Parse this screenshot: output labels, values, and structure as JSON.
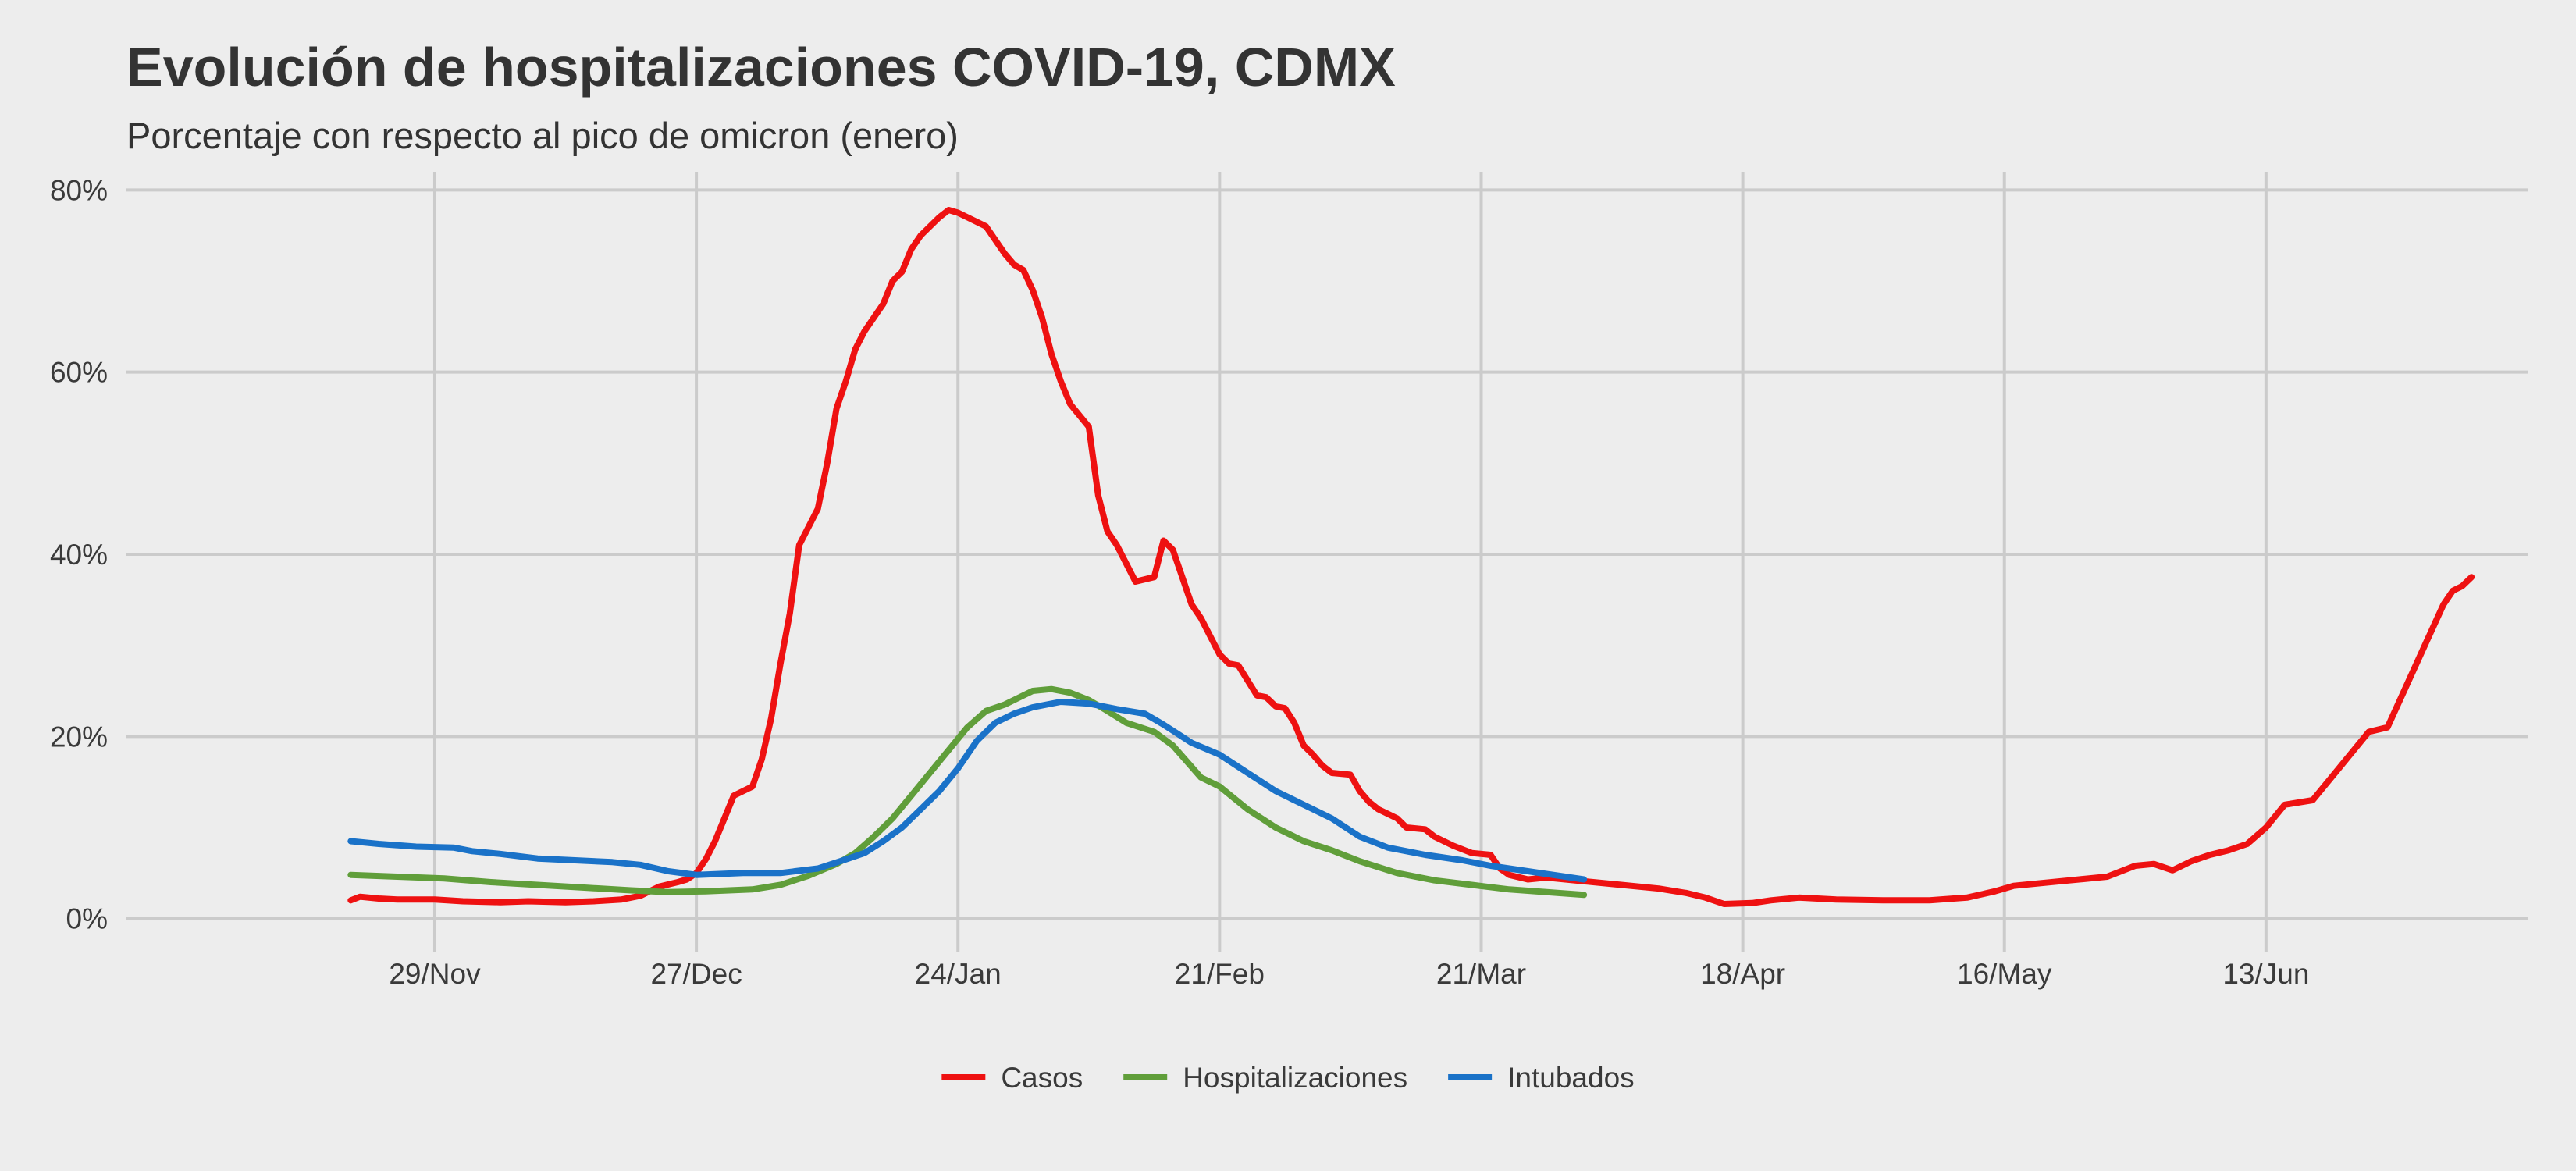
{
  "chart_data": {
    "type": "line",
    "title": "Evolución de hospitalizaciones COVID-19, CDMX",
    "subtitle": "Porcentaje con respecto al pico de omicron (enero)",
    "xlabel": "",
    "ylabel": "",
    "x_ticks": [
      {
        "date": "2021-11-29",
        "label": "29/Nov"
      },
      {
        "date": "2021-12-27",
        "label": "27/Dec"
      },
      {
        "date": "2022-01-24",
        "label": "24/Jan"
      },
      {
        "date": "2022-02-21",
        "label": "21/Feb"
      },
      {
        "date": "2022-03-21",
        "label": "21/Mar"
      },
      {
        "date": "2022-04-18",
        "label": "18/Apr"
      },
      {
        "date": "2022-05-16",
        "label": "16/May"
      },
      {
        "date": "2022-06-13",
        "label": "13/Jun"
      }
    ],
    "y_ticks": [
      {
        "value": 0,
        "label": "0%"
      },
      {
        "value": 20,
        "label": "20%"
      },
      {
        "value": 40,
        "label": "40%"
      },
      {
        "value": 60,
        "label": "60%"
      },
      {
        "value": 80,
        "label": "80%"
      }
    ],
    "xlim": [
      "2021-10-27",
      "2022-07-11"
    ],
    "ylim": [
      -2,
      82
    ],
    "grid": true,
    "legend_position": "bottom",
    "series": [
      {
        "name": "Casos",
        "color": "#ee1111",
        "points": [
          [
            "2021-11-20",
            2.0
          ],
          [
            "2021-11-21",
            2.4
          ],
          [
            "2021-11-23",
            2.2
          ],
          [
            "2021-11-25",
            2.1
          ],
          [
            "2021-11-29",
            2.1
          ],
          [
            "2021-12-02",
            1.9
          ],
          [
            "2021-12-06",
            1.8
          ],
          [
            "2021-12-09",
            1.9
          ],
          [
            "2021-12-13",
            1.8
          ],
          [
            "2021-12-16",
            1.9
          ],
          [
            "2021-12-19",
            2.1
          ],
          [
            "2021-12-21",
            2.5
          ],
          [
            "2021-12-23",
            3.5
          ],
          [
            "2021-12-25",
            4.0
          ],
          [
            "2021-12-26",
            4.3
          ],
          [
            "2021-12-27",
            5.0
          ],
          [
            "2021-12-28",
            6.5
          ],
          [
            "2021-12-29",
            8.5
          ],
          [
            "2021-12-30",
            11.0
          ],
          [
            "2021-12-31",
            13.5
          ],
          [
            "2022-01-02",
            14.5
          ],
          [
            "2022-01-03",
            17.5
          ],
          [
            "2022-01-04",
            22.0
          ],
          [
            "2022-01-05",
            28.0
          ],
          [
            "2022-01-06",
            33.5
          ],
          [
            "2022-01-07",
            41.0
          ],
          [
            "2022-01-09",
            45.0
          ],
          [
            "2022-01-10",
            50.0
          ],
          [
            "2022-01-11",
            56.0
          ],
          [
            "2022-01-12",
            59.0
          ],
          [
            "2022-01-13",
            62.5
          ],
          [
            "2022-01-14",
            64.5
          ],
          [
            "2022-01-16",
            67.5
          ],
          [
            "2022-01-17",
            70.0
          ],
          [
            "2022-01-18",
            71.0
          ],
          [
            "2022-01-19",
            73.5
          ],
          [
            "2022-01-20",
            75.0
          ],
          [
            "2022-01-22",
            77.0
          ],
          [
            "2022-01-23",
            77.8
          ],
          [
            "2022-01-24",
            77.5
          ],
          [
            "2022-01-25",
            77.0
          ],
          [
            "2022-01-27",
            76.0
          ],
          [
            "2022-01-29",
            73.0
          ],
          [
            "2022-01-30",
            71.8
          ],
          [
            "2022-01-31",
            71.2
          ],
          [
            "2022-02-01",
            69.0
          ],
          [
            "2022-02-02",
            66.0
          ],
          [
            "2022-02-03",
            62.0
          ],
          [
            "2022-02-04",
            59.0
          ],
          [
            "2022-02-05",
            56.5
          ],
          [
            "2022-02-07",
            54.0
          ],
          [
            "2022-02-08",
            46.5
          ],
          [
            "2022-02-09",
            42.5
          ],
          [
            "2022-02-10",
            41.0
          ],
          [
            "2022-02-11",
            39.0
          ],
          [
            "2022-02-12",
            37.0
          ],
          [
            "2022-02-14",
            37.5
          ],
          [
            "2022-02-15",
            41.5
          ],
          [
            "2022-02-16",
            40.5
          ],
          [
            "2022-02-17",
            37.5
          ],
          [
            "2022-02-18",
            34.5
          ],
          [
            "2022-02-19",
            33.0
          ],
          [
            "2022-02-21",
            29.0
          ],
          [
            "2022-02-22",
            28.0
          ],
          [
            "2022-02-23",
            27.8
          ],
          [
            "2022-02-25",
            24.5
          ],
          [
            "2022-02-26",
            24.3
          ],
          [
            "2022-02-27",
            23.3
          ],
          [
            "2022-02-28",
            23.1
          ],
          [
            "2022-03-01",
            21.5
          ],
          [
            "2022-03-02",
            19.0
          ],
          [
            "2022-03-03",
            18.0
          ],
          [
            "2022-03-04",
            16.8
          ],
          [
            "2022-03-05",
            16.0
          ],
          [
            "2022-03-07",
            15.8
          ],
          [
            "2022-03-08",
            14.0
          ],
          [
            "2022-03-09",
            12.8
          ],
          [
            "2022-03-10",
            12.0
          ],
          [
            "2022-03-12",
            11.0
          ],
          [
            "2022-03-13",
            10.0
          ],
          [
            "2022-03-15",
            9.8
          ],
          [
            "2022-03-16",
            9.0
          ],
          [
            "2022-03-18",
            8.0
          ],
          [
            "2022-03-20",
            7.2
          ],
          [
            "2022-03-22",
            7.0
          ],
          [
            "2022-03-23",
            5.5
          ],
          [
            "2022-03-24",
            4.8
          ],
          [
            "2022-03-26",
            4.3
          ],
          [
            "2022-03-28",
            4.5
          ],
          [
            "2022-03-30",
            4.3
          ],
          [
            "2022-04-02",
            4.0
          ],
          [
            "2022-04-05",
            3.7
          ],
          [
            "2022-04-09",
            3.3
          ],
          [
            "2022-04-12",
            2.8
          ],
          [
            "2022-04-14",
            2.3
          ],
          [
            "2022-04-16",
            1.6
          ],
          [
            "2022-04-19",
            1.7
          ],
          [
            "2022-04-21",
            2.0
          ],
          [
            "2022-04-24",
            2.3
          ],
          [
            "2022-04-28",
            2.1
          ],
          [
            "2022-05-03",
            2.0
          ],
          [
            "2022-05-08",
            2.0
          ],
          [
            "2022-05-12",
            2.3
          ],
          [
            "2022-05-15",
            3.0
          ],
          [
            "2022-05-17",
            3.6
          ],
          [
            "2022-05-20",
            3.9
          ],
          [
            "2022-05-23",
            4.2
          ],
          [
            "2022-05-27",
            4.6
          ],
          [
            "2022-05-30",
            5.8
          ],
          [
            "2022-06-01",
            6.0
          ],
          [
            "2022-06-03",
            5.3
          ],
          [
            "2022-06-05",
            6.3
          ],
          [
            "2022-06-07",
            7.0
          ],
          [
            "2022-06-09",
            7.5
          ],
          [
            "2022-06-11",
            8.2
          ],
          [
            "2022-06-13",
            10.0
          ],
          [
            "2022-06-15",
            12.5
          ],
          [
            "2022-06-18",
            13.0
          ],
          [
            "2022-06-20",
            15.5
          ],
          [
            "2022-06-22",
            18.0
          ],
          [
            "2022-06-24",
            20.5
          ],
          [
            "2022-06-26",
            21.0
          ],
          [
            "2022-06-28",
            25.5
          ],
          [
            "2022-06-30",
            30.0
          ],
          [
            "2022-07-02",
            34.5
          ],
          [
            "2022-07-03",
            36.0
          ],
          [
            "2022-07-04",
            36.5
          ],
          [
            "2022-07-05",
            37.5
          ]
        ]
      },
      {
        "name": "Hospitalizaciones",
        "color": "#609e3a",
        "points": [
          [
            "2021-11-20",
            4.8
          ],
          [
            "2021-11-25",
            4.6
          ],
          [
            "2021-11-30",
            4.4
          ],
          [
            "2021-12-05",
            4.0
          ],
          [
            "2021-12-10",
            3.7
          ],
          [
            "2021-12-15",
            3.4
          ],
          [
            "2021-12-20",
            3.1
          ],
          [
            "2021-12-24",
            2.9
          ],
          [
            "2021-12-28",
            3.0
          ],
          [
            "2022-01-02",
            3.2
          ],
          [
            "2022-01-05",
            3.7
          ],
          [
            "2022-01-08",
            4.7
          ],
          [
            "2022-01-11",
            6.0
          ],
          [
            "2022-01-13",
            7.2
          ],
          [
            "2022-01-15",
            9.0
          ],
          [
            "2022-01-17",
            11.0
          ],
          [
            "2022-01-19",
            13.5
          ],
          [
            "2022-01-21",
            16.0
          ],
          [
            "2022-01-23",
            18.5
          ],
          [
            "2022-01-25",
            21.0
          ],
          [
            "2022-01-27",
            22.8
          ],
          [
            "2022-01-29",
            23.5
          ],
          [
            "2022-02-01",
            25.0
          ],
          [
            "2022-02-03",
            25.2
          ],
          [
            "2022-02-05",
            24.8
          ],
          [
            "2022-02-07",
            24.0
          ],
          [
            "2022-02-09",
            22.8
          ],
          [
            "2022-02-11",
            21.5
          ],
          [
            "2022-02-14",
            20.5
          ],
          [
            "2022-02-16",
            19.0
          ],
          [
            "2022-02-19",
            15.5
          ],
          [
            "2022-02-21",
            14.5
          ],
          [
            "2022-02-24",
            12.0
          ],
          [
            "2022-02-27",
            10.0
          ],
          [
            "2022-03-02",
            8.5
          ],
          [
            "2022-03-05",
            7.5
          ],
          [
            "2022-03-08",
            6.3
          ],
          [
            "2022-03-12",
            5.0
          ],
          [
            "2022-03-16",
            4.2
          ],
          [
            "2022-03-20",
            3.7
          ],
          [
            "2022-03-24",
            3.2
          ],
          [
            "2022-03-28",
            2.9
          ],
          [
            "2022-04-01",
            2.6
          ]
        ]
      },
      {
        "name": "Intubados",
        "color": "#1a72c8",
        "points": [
          [
            "2021-11-20",
            8.5
          ],
          [
            "2021-11-23",
            8.2
          ],
          [
            "2021-11-27",
            7.9
          ],
          [
            "2021-12-01",
            7.8
          ],
          [
            "2021-12-03",
            7.4
          ],
          [
            "2021-12-06",
            7.1
          ],
          [
            "2021-12-10",
            6.6
          ],
          [
            "2021-12-14",
            6.4
          ],
          [
            "2021-12-18",
            6.2
          ],
          [
            "2021-12-21",
            5.9
          ],
          [
            "2021-12-24",
            5.2
          ],
          [
            "2021-12-27",
            4.8
          ],
          [
            "2022-01-01",
            5.0
          ],
          [
            "2022-01-05",
            5.0
          ],
          [
            "2022-01-09",
            5.5
          ],
          [
            "2022-01-12",
            6.5
          ],
          [
            "2022-01-14",
            7.2
          ],
          [
            "2022-01-16",
            8.5
          ],
          [
            "2022-01-18",
            10.0
          ],
          [
            "2022-01-20",
            12.0
          ],
          [
            "2022-01-22",
            14.0
          ],
          [
            "2022-01-24",
            16.5
          ],
          [
            "2022-01-26",
            19.5
          ],
          [
            "2022-01-28",
            21.5
          ],
          [
            "2022-01-30",
            22.5
          ],
          [
            "2022-02-01",
            23.2
          ],
          [
            "2022-02-04",
            23.8
          ],
          [
            "2022-02-07",
            23.6
          ],
          [
            "2022-02-10",
            23.0
          ],
          [
            "2022-02-13",
            22.5
          ],
          [
            "2022-02-15",
            21.3
          ],
          [
            "2022-02-18",
            19.3
          ],
          [
            "2022-02-21",
            18.0
          ],
          [
            "2022-02-24",
            16.0
          ],
          [
            "2022-02-27",
            14.0
          ],
          [
            "2022-03-02",
            12.5
          ],
          [
            "2022-03-05",
            11.0
          ],
          [
            "2022-03-08",
            9.0
          ],
          [
            "2022-03-11",
            7.8
          ],
          [
            "2022-03-15",
            7.0
          ],
          [
            "2022-03-19",
            6.4
          ],
          [
            "2022-03-22",
            5.8
          ],
          [
            "2022-03-26",
            5.2
          ],
          [
            "2022-03-30",
            4.6
          ],
          [
            "2022-04-01",
            4.3
          ]
        ]
      }
    ]
  }
}
